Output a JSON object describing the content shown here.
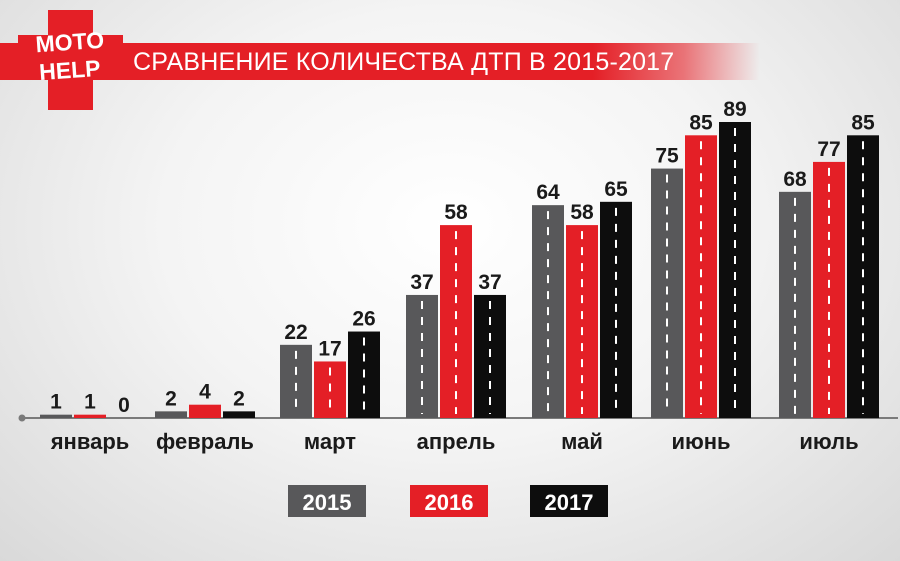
{
  "header": {
    "title": "СРАВНЕНИЕ КОЛИЧЕСТВА ДТП В 2015-2017",
    "logo_text": [
      "MOTO",
      "HELP"
    ]
  },
  "colors": {
    "2015": "#58585a",
    "2016": "#e41f26",
    "2017": "#0d0d0d",
    "brand": "#e41f26"
  },
  "chart_data": {
    "type": "bar",
    "title": "СРАВНЕНИЕ КОЛИЧЕСТВА ДТП В 2015-2017",
    "categories": [
      "январь",
      "февраль",
      "март",
      "апрель",
      "май",
      "июнь",
      "июль"
    ],
    "series": [
      {
        "name": "2015",
        "values": [
          1,
          2,
          22,
          37,
          64,
          75,
          68
        ]
      },
      {
        "name": "2016",
        "values": [
          1,
          4,
          17,
          58,
          58,
          85,
          77
        ]
      },
      {
        "name": "2017",
        "values": [
          0,
          2,
          26,
          37,
          65,
          89,
          85
        ]
      }
    ],
    "ylim": [
      0,
      89
    ],
    "grid": false,
    "legend": "bottom-center",
    "xlabel": "",
    "ylabel": ""
  }
}
